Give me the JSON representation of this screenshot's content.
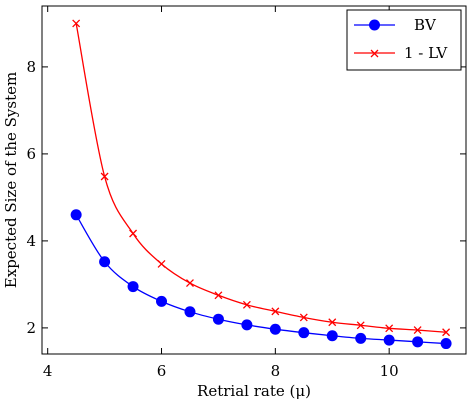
{
  "chart_data": {
    "type": "line",
    "title": "",
    "xlabel": "Retrial rate (μ)",
    "ylabel": "Expected Size of the System",
    "xlim": [
      3.9,
      11.35
    ],
    "ylim": [
      1.4,
      9.4
    ],
    "xticks": [
      4,
      6,
      8,
      10
    ],
    "yticks": [
      2,
      4,
      6,
      8
    ],
    "grid": false,
    "legend_position": "top-right",
    "series": [
      {
        "name": "BV",
        "color": "#0000ff",
        "marker": "circle",
        "x": [
          4.5,
          5,
          5.5,
          6,
          6.5,
          7,
          7.5,
          8,
          8.5,
          9,
          9.5,
          10,
          10.5,
          11
        ],
        "y": [
          4.6,
          3.52,
          2.95,
          2.61,
          2.37,
          2.2,
          2.07,
          1.97,
          1.89,
          1.82,
          1.76,
          1.72,
          1.68,
          1.64
        ]
      },
      {
        "name": "1 - LV",
        "color": "#ff0000",
        "marker": "x",
        "x": [
          4.5,
          5,
          5.5,
          6,
          6.5,
          7,
          7.5,
          8,
          8.5,
          9,
          9.5,
          10,
          10.5,
          11
        ],
        "y": [
          9.0,
          5.48,
          4.17,
          3.47,
          3.03,
          2.75,
          2.53,
          2.38,
          2.24,
          2.13,
          2.06,
          1.99,
          1.95,
          1.9
        ]
      }
    ]
  }
}
